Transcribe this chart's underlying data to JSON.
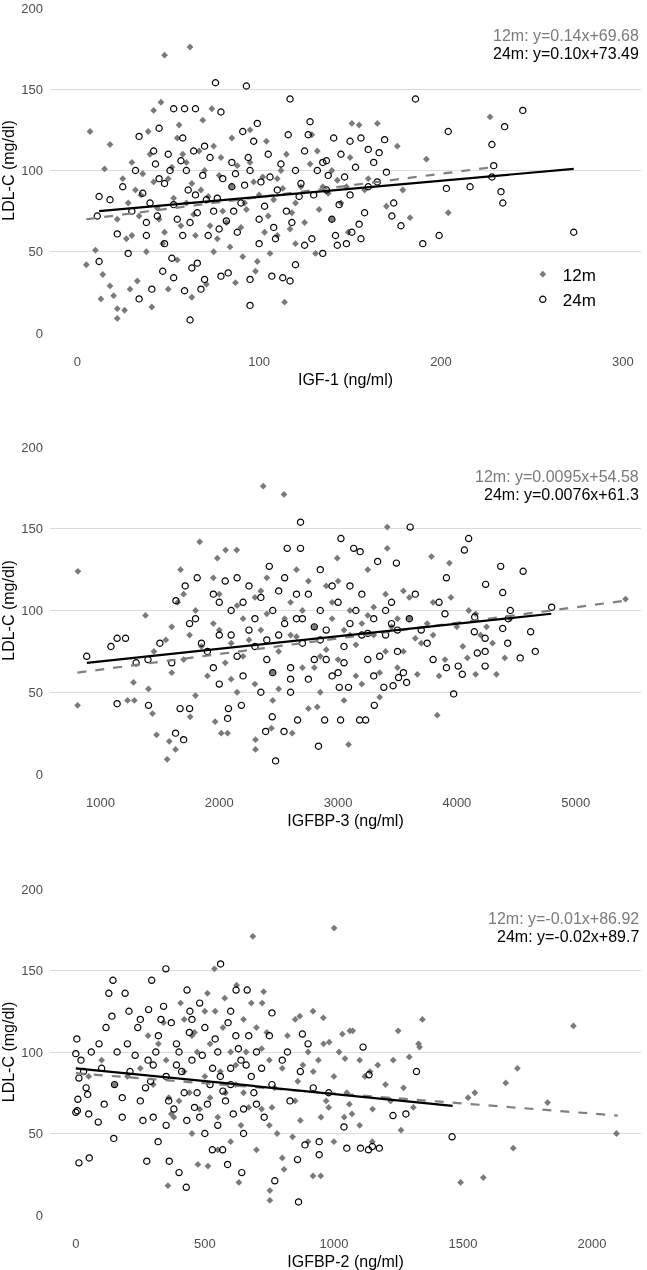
{
  "chart_data": [
    {
      "type": "scatter",
      "xlabel": "IGF-1 (ng/ml)",
      "ylabel": "LDL-C (mg/dl)",
      "annotations": [
        "12m: y=0.14x+69.68",
        "24m: y=0.10x+73.49"
      ],
      "xlim": [
        -15,
        310
      ],
      "ylim": [
        0,
        200
      ],
      "xticks": [
        0,
        100,
        200,
        300
      ],
      "yticks": [
        0,
        50,
        100,
        150,
        200
      ],
      "grid": "y",
      "legend": "bottom right",
      "series": [
        {
          "name": "12m",
          "color": "#7a7a7a",
          "marker": "diamond",
          "x": [
            7,
            48,
            62,
            46,
            42,
            18,
            15,
            74,
            69,
            227,
            192,
            176,
            165,
            155,
            151,
            129,
            204,
            179,
            5,
            13,
            22,
            26,
            22,
            18,
            20,
            41,
            50,
            63,
            114,
            183,
            149,
            131,
            98,
            87,
            71,
            99,
            106,
            33,
            29,
            10,
            14,
            25,
            30,
            35,
            40,
            45,
            50,
            55,
            60,
            65,
            70,
            75,
            80,
            85,
            90,
            95,
            100,
            105,
            110,
            115,
            120,
            125,
            135,
            140,
            145,
            160,
            170,
            30,
            38,
            55,
            75,
            22,
            28,
            60,
            85,
            95,
            120,
            48,
            68,
            110,
            140,
            32,
            36,
            44,
            52,
            57,
            63,
            67,
            72,
            78,
            82,
            88,
            92,
            97,
            103,
            108,
            112,
            118,
            123,
            128,
            133,
            138,
            143,
            150,
            158,
            27,
            34,
            42,
            47,
            53,
            58,
            64,
            73,
            79,
            84,
            93,
            102,
            117,
            132,
            148,
            39,
            56,
            77,
            91,
            104,
            113
          ],
          "values": [
            124,
            171,
            176,
            142,
            137,
            116,
            101,
            138,
            131,
            133,
            107,
            115,
            129,
            128,
            129,
            122,
            74,
            88,
            42,
            21,
            15,
            14,
            9,
            29,
            23,
            16,
            27,
            22,
            19,
            71,
            62,
            49,
            38,
            31,
            30,
            44,
            49,
            32,
            27,
            51,
            36,
            95,
            105,
            85,
            110,
            70,
            95,
            120,
            80,
            60,
            100,
            115,
            75,
            90,
            65,
            105,
            85,
            72,
            95,
            110,
            80,
            68,
            90,
            100,
            80,
            95,
            78,
            60,
            50,
            45,
            50,
            70,
            80,
            105,
            120,
            125,
            55,
            62,
            88,
            60,
            70,
            88,
            98,
            77,
            102,
            66,
            92,
            112,
            84,
            97,
            68,
            103,
            80,
            93,
            62,
            82,
            100,
            74,
            90,
            104,
            76,
            86,
            94,
            108,
            88,
            58,
            72,
            93,
            55,
            83,
            110,
            73,
            66,
            108,
            53,
            76,
            96,
            64,
            112,
            90,
            124,
            128,
            58,
            47,
            118,
            89
          ]
        },
        {
          "name": "24m",
          "color": "#000000",
          "marker": "circle",
          "x": [
            76,
            93,
            117,
            186,
            245,
            235,
            204,
            228,
            229,
            228,
            233,
            234,
            216,
            203,
            174,
            169,
            166,
            160,
            156,
            150,
            141,
            128,
            99,
            91,
            53,
            59,
            65,
            34,
            79,
            45,
            12,
            18,
            170,
            163,
            138,
            147,
            123,
            273,
            199,
            190,
            178,
            173,
            156,
            148,
            143,
            135,
            142,
            151,
            120,
            117,
            113,
            107,
            95,
            95,
            62,
            59,
            68,
            70,
            79,
            83,
            47,
            41,
            34,
            28,
            12,
            22,
            11,
            53,
            63,
            66,
            52,
            129,
            125,
            25,
            32,
            40,
            45,
            50,
            55,
            60,
            65,
            70,
            75,
            80,
            85,
            90,
            95,
            100,
            105,
            110,
            115,
            120,
            130,
            135,
            140,
            150,
            160,
            38,
            48,
            72,
            88,
            100,
            58,
            42,
            30,
            108,
            125,
            85,
            62,
            36,
            43,
            48,
            53,
            57,
            61,
            66,
            69,
            73,
            77,
            82,
            87,
            92,
            97,
            103,
            106,
            112,
            118,
            122,
            127,
            132,
            137,
            145,
            153,
            158,
            165,
            38,
            44,
            51,
            58,
            64,
            71,
            78,
            86,
            94,
            101,
            109,
            116,
            137,
            144,
            155
          ],
          "values": [
            154,
            152,
            144,
            144,
            137,
            127,
            124,
            116,
            103,
            96,
            87,
            80,
            90,
            89,
            80,
            119,
            111,
            113,
            120,
            118,
            120,
            130,
            129,
            124,
            138,
            138,
            138,
            121,
            136,
            126,
            84,
            82,
            99,
            105,
            97,
            96,
            92,
            62,
            60,
            55,
            66,
            72,
            58,
            55,
            54,
            49,
            60,
            62,
            42,
            32,
            34,
            35,
            17,
            33,
            8,
            26,
            27,
            33,
            35,
            37,
            38,
            27,
            21,
            49,
            44,
            61,
            72,
            34,
            40,
            43,
            46,
            58,
            54,
            90,
            100,
            80,
            95,
            110,
            70,
            100,
            85,
            115,
            75,
            95,
            105,
            80,
            100,
            70,
            110,
            88,
            75,
            100,
            85,
            105,
            70,
            85,
            90,
            60,
            55,
            60,
            62,
            55,
            120,
            112,
            75,
            65,
            112,
            90,
            68,
            86,
            104,
            92,
            79,
            106,
            88,
            74,
            97,
            108,
            83,
            69,
            98,
            91,
            118,
            78,
            96,
            104,
            68,
            84,
            122,
            100,
            88,
            110,
            102,
            74,
            93,
            68,
            72,
            100,
            60,
            112,
            82,
            64,
            75,
            108,
            93,
            58,
            122,
            106,
            79,
            67
          ]
        },
        {
          "type": "line",
          "color": "#808080",
          "line_style": "dashed",
          "x": [
            5,
            228
          ],
          "values": [
            70,
            102
          ]
        },
        {
          "type": "line",
          "color": "#000000",
          "line_style": "solid",
          "x": [
            12,
            273
          ],
          "values": [
            75,
            101
          ]
        }
      ]
    },
    {
      "type": "scatter",
      "xlabel": "IGFBP-3 (ng/ml)",
      "ylabel": "LDL-C (mg/dl)",
      "annotations": [
        "12m: y=0.0095x+54.58",
        "24m: y=0.0076x+61.3"
      ],
      "xlim": [
        575,
        5550
      ],
      "ylim": [
        0,
        200
      ],
      "xticks": [
        1000,
        2000,
        3000,
        4000,
        5000
      ],
      "yticks": [
        0,
        50,
        100,
        150,
        200
      ],
      "grid": "y",
      "series": [
        {
          "color": "#7a7a7a",
          "marker": "diamond",
          "x": [
            810,
            2370,
            2545,
            1835,
            3414,
            3414,
            2053,
            2147,
            1983,
            3786,
            3937,
            2993,
            1379,
            1674,
            4158,
            807,
            1278,
            1228,
            1285,
            1472,
            1561,
            1632,
            1579,
            2017,
            2070,
            2305,
            2305,
            2614,
            3088,
            3835,
            4333,
            4403,
            4158,
            4088,
            3350,
            2825,
            1404,
            1438,
            1755,
            1965,
            2439,
            3667,
            5420,
            4250,
            4450,
            1600,
            1700,
            1800,
            1900,
            2000,
            2100,
            2200,
            2300,
            2400,
            2500,
            2600,
            2700,
            2800,
            2900,
            3000,
            3100,
            3200,
            3300,
            3400,
            3500,
            3600,
            3700,
            3800,
            3900,
            4000,
            4200,
            2150,
            2450,
            2750,
            3050,
            1950,
            2650,
            3250,
            1750,
            2350,
            2950,
            3550,
            4100,
            4300,
            1450,
            1650,
            3150,
            2850,
            1700,
            1850,
            1950,
            2050,
            2150,
            2250,
            2350,
            2450,
            2550,
            2650,
            2750,
            2850,
            2950,
            3050,
            3150,
            3250,
            3350,
            3450,
            3550,
            3650,
            3750,
            3850,
            3950,
            1600,
            1800,
            2000,
            2200,
            2400,
            2600,
            2800,
            3000,
            3200,
            3400,
            3600,
            3800,
            2100,
            2300,
            2500,
            2700,
            2900,
            3100,
            3300,
            3500,
            1550,
            4050
          ],
          "values": [
            124,
            176,
            171,
            142,
            151,
            138,
            137,
            137,
            132,
            133,
            129,
            132,
            97,
            125,
            98,
            42,
            56,
            45,
            45,
            24,
            9,
            15,
            20,
            25,
            25,
            15,
            21,
            25,
            18,
            36,
            61,
            71,
            61,
            71,
            47,
            41,
            52,
            37,
            35,
            32,
            28,
            61,
            107,
            90,
            95,
            90,
            70,
            100,
            60,
            110,
            80,
            95,
            55,
            120,
            75,
            105,
            65,
            90,
            115,
            70,
            100,
            55,
            85,
            110,
            65,
            95,
            80,
            105,
            70,
            90,
            85,
            50,
            45,
            40,
            45,
            120,
            125,
            125,
            85,
            88,
            95,
            75,
            100,
            80,
            75,
            105,
            60,
            50,
            110,
            78,
            92,
            68,
            103,
            82,
            112,
            62,
            95,
            84,
            118,
            72,
            105,
            88,
            79,
            97,
            62,
            90,
            112,
            83,
            92,
            60,
            108,
            62,
            48,
            88,
            72,
            98,
            85,
            65,
            118,
            92,
            75,
            108,
            85,
            58,
            108,
            52,
            100,
            76,
            85,
            102,
            95,
            82,
            78
          ]
        },
        {
          "color": "#000000",
          "marker": "circle",
          "x": [
            2684,
            3607,
            4099,
            3024,
            3131,
            3186,
            2572,
            2684,
            4063,
            4369,
            4558,
            4242,
            4386,
            4432,
            4798,
            4621,
            1814,
            1713,
            1635,
            2421,
            3333,
            3491,
            3912,
            884,
            1140,
            1088,
            1211,
            1140,
            1404,
            1632,
            1700,
            1670,
            1750,
            2077,
            2070,
            2186,
            2390,
            2474,
            2446,
            2545,
            2659,
            2835,
            2887,
            3021,
            3181,
            3232,
            3305,
            3973,
            4046,
            4011,
            3912,
            4238,
            4238,
            4172,
            4533,
            4428,
            4660,
            4386,
            4238,
            4147,
            3577,
            3509,
            3463,
            3385,
            3088,
            3010,
            1800,
            1900,
            2000,
            2100,
            2200,
            2250,
            2300,
            2400,
            2450,
            2500,
            2550,
            2600,
            2650,
            2700,
            2750,
            2800,
            2850,
            2900,
            2950,
            3000,
            3050,
            3100,
            3200,
            3250,
            3300,
            3400,
            3450,
            3500,
            3600,
            3700,
            3800,
            3900,
            2000,
            2350,
            2600,
            2150,
            2850,
            1950,
            1600,
            1500,
            1400,
            1300,
            1850,
            1950,
            2050,
            2150,
            2250,
            2350,
            2450,
            2550,
            2650,
            2750,
            2850,
            2950,
            3050,
            3150,
            3250,
            3350,
            3450,
            3550,
            3650,
            3750,
            2100,
            2300,
            2500,
            2700,
            2900,
            3100,
            3300,
            3500,
            2000,
            2200,
            2400,
            2600,
            2800,
            3000,
            3200,
            3400,
            1750,
            3850,
            4150,
            4450
          ],
          "values": [
            154,
            151,
            144,
            144,
            138,
            136,
            138,
            138,
            137,
            127,
            124,
            116,
            111,
            95,
            102,
            87,
            120,
            115,
            106,
            127,
            130,
            129,
            120,
            72,
            83,
            78,
            83,
            43,
            42,
            25,
            21,
            40,
            40,
            40,
            34,
            42,
            26,
            8,
            35,
            26,
            33,
            17,
            33,
            33,
            33,
            33,
            42,
            49,
            61,
            66,
            65,
            66,
            75,
            74,
            71,
            80,
            75,
            89,
            83,
            87,
            56,
            59,
            54,
            53,
            53,
            53,
            95,
            75,
            105,
            85,
            60,
            115,
            95,
            70,
            100,
            85,
            120,
            65,
            95,
            80,
            110,
            70,
            100,
            88,
            60,
            105,
            78,
            92,
            110,
            70,
            95,
            85,
            105,
            75,
            95,
            88,
            70,
            98,
            55,
            50,
            50,
            120,
            125,
            110,
            68,
            80,
            70,
            68,
            80,
            65,
            118,
            72,
            88,
            108,
            62,
            92,
            110,
            58,
            82,
            115,
            68,
            100,
            86,
            72,
            92,
            62,
            110,
            80,
            100,
            78,
            112,
            95,
            70,
            115,
            60,
            88,
            85,
            105,
            82,
            58,
            90,
            62,
            85,
            100,
            92,
            105,
            96,
            100
          ]
        },
        {
          "type": "line",
          "color": "#808080",
          "line_style": "dashed",
          "x": [
            806,
            5420
          ],
          "values": [
            62,
            106
          ]
        },
        {
          "type": "line",
          "color": "#000000",
          "line_style": "solid",
          "x": [
            885,
            4795
          ],
          "values": [
            68,
            98
          ]
        }
      ]
    },
    {
      "type": "scatter",
      "xlabel": "IGFBP-2 (ng/ml)",
      "ylabel": "LDL-C (mg/dl)",
      "annotations": [
        "12m: y=-0.01x+86.92",
        "24m: y=-0.02x+89.7"
      ],
      "xlim": [
        -100,
        2190
      ],
      "ylim": [
        0,
        200
      ],
      "xticks": [
        0,
        500,
        1000,
        1500,
        2000
      ],
      "yticks": [
        0,
        50,
        100,
        150,
        200
      ],
      "grid": "y",
      "series": [
        {
          "color": "#7a7a7a",
          "marker": "diamond",
          "x": [
            1001,
            686,
            537,
            1928,
            1343,
            1249,
            1062,
            1073,
            1033,
            959,
            919,
            868,
            728,
            722,
            623,
            510,
            577,
            406,
            1332,
            982,
            1711,
            1666,
            1828,
            1546,
            1520,
            2095,
            1695,
            1579,
            1491,
            1292,
            1328,
            1260,
            1308,
            1149,
            919,
            949,
            752,
            752,
            807,
            632,
            357,
            473,
            512,
            1043,
            350,
            400,
            450,
            500,
            550,
            600,
            650,
            700,
            750,
            800,
            850,
            900,
            950,
            1000,
            1050,
            1100,
            1150,
            1200,
            300,
            250,
            200,
            150,
            100,
            50,
            600,
            700,
            800,
            900,
            500,
            650,
            550,
            450,
            750,
            1000,
            1100,
            850,
            620,
            720,
            520,
            420,
            380,
            320,
            370,
            420,
            470,
            520,
            570,
            620,
            670,
            720,
            770,
            820,
            870,
            920,
            970,
            1020,
            1070,
            1120,
            1170,
            1220,
            1270,
            340,
            440,
            540,
            640,
            740,
            840,
            940,
            1040,
            1140,
            360,
            460,
            560,
            660,
            760,
            860,
            960,
            1060,
            280,
            580,
            680,
            780,
            880,
            980,
            480,
            1230
          ],
          "values": [
            176,
            171,
            151,
            116,
            120,
            113,
            113,
            113,
            111,
            121,
            125,
            122,
            137,
            130,
            141,
            136,
            133,
            130,
            103,
            106,
            90,
            81,
            69,
            75,
            72,
            50,
            41,
            23,
            20,
            97,
            105,
            52,
            66,
            45,
            24,
            24,
            9,
            15,
            28,
            20,
            18,
            31,
            30,
            96,
            95,
            70,
            110,
            85,
            60,
            100,
            75,
            115,
            55,
            90,
            70,
            100,
            60,
            85,
            75,
            95,
            65,
            80,
            80,
            90,
            85,
            80,
            95,
            85,
            45,
            40,
            35,
            45,
            125,
            120,
            40,
            50,
            95,
            45,
            55,
            120,
            80,
            65,
            105,
            120,
            60,
            105,
            62,
            88,
            100,
            72,
            115,
            92,
            66,
            102,
            78,
            110,
            58,
            88,
            70,
            100,
            62,
            85,
            92,
            70,
            78,
            118,
            75,
            125,
            55,
            112,
            48,
            95,
            60,
            88,
            72,
            112,
            88,
            100,
            66,
            82,
            105,
            68,
            110,
            75,
            130,
            50,
            92,
            66,
            65,
            95
          ]
        },
        {
          "color": "#000000",
          "marker": "circle",
          "x": [
            561,
            349,
            144,
            294,
            128,
            191,
            117,
            4,
            431,
            621,
            664,
            760,
            1113,
            878,
            900,
            206,
            282,
            442,
            1458,
            1229,
            1136,
            1050,
            1103,
            1279,
            1320,
            1039,
            943,
            943,
            888,
            863,
            859,
            771,
            643,
            588,
            529,
            569,
            400,
            428,
            362,
            275,
            319,
            52,
            12,
            6,
            8,
            12,
            87,
            46,
            147,
            20,
            60,
            100,
            150,
            200,
            250,
            280,
            320,
            350,
            380,
            400,
            420,
            450,
            480,
            500,
            520,
            550,
            580,
            600,
            620,
            650,
            680,
            700,
            730,
            760,
            800,
            830,
            870,
            920,
            980,
            250,
            450,
            600,
            350,
            500,
            650,
            180,
            300,
            550,
            750,
            0,
            0,
            1134,
            1149,
            1176,
            160,
            210,
            240,
            270,
            300,
            330,
            360,
            390,
            410,
            440,
            470,
            490,
            510,
            540,
            560,
            590,
            610,
            640,
            670,
            690,
            720,
            180,
            230,
            290,
            340,
            390,
            460,
            530,
            570,
            630,
            700,
            140,
            260,
            310,
            370,
            430,
            480,
            600,
            660,
            40,
            90,
            110,
            820,
            50,
            30
          ],
          "values": [
            154,
            151,
            144,
            144,
            136,
            136,
            115,
            108,
            138,
            138,
            138,
            124,
            103,
            111,
            105,
            125,
            126,
            125,
            48,
            61,
            86,
            41,
            41,
            62,
            88,
            54,
            45,
            37,
            43,
            8,
            34,
            21,
            26,
            31,
            40,
            40,
            26,
            17,
            33,
            33,
            45,
            35,
            32,
            64,
            71,
            84,
            57,
            74,
            47,
            95,
            100,
            90,
            80,
            105,
            70,
            95,
            110,
            85,
            65,
            100,
            75,
            95,
            60,
            115,
            80,
            100,
            70,
            90,
            110,
            65,
            85,
            100,
            60,
            80,
            95,
            70,
            88,
            78,
            75,
            120,
            120,
            125,
            55,
            50,
            50,
            60,
            60,
            55,
            110,
            99,
            63,
            40,
            42,
            41,
            100,
            88,
            115,
            78,
            92,
            120,
            70,
            105,
            88,
            112,
            75,
            98,
            68,
            108,
            85,
            118,
            62,
            95,
            110,
            75,
            90,
            72,
            98,
            82,
            128,
            92,
            66,
            90,
            76,
            102,
            68,
            122,
            58,
            100,
            118,
            58,
            130,
            80,
            92,
            78,
            105,
            68,
            100,
            62,
            88
          ]
        },
        {
          "type": "line",
          "color": "#808080",
          "line_style": "dashed",
          "x": [
            0,
            2100
          ],
          "values": [
            87,
            61
          ]
        },
        {
          "type": "line",
          "color": "#000000",
          "line_style": "solid",
          "x": [
            0,
            1460
          ],
          "values": [
            90,
            67
          ]
        }
      ]
    }
  ]
}
